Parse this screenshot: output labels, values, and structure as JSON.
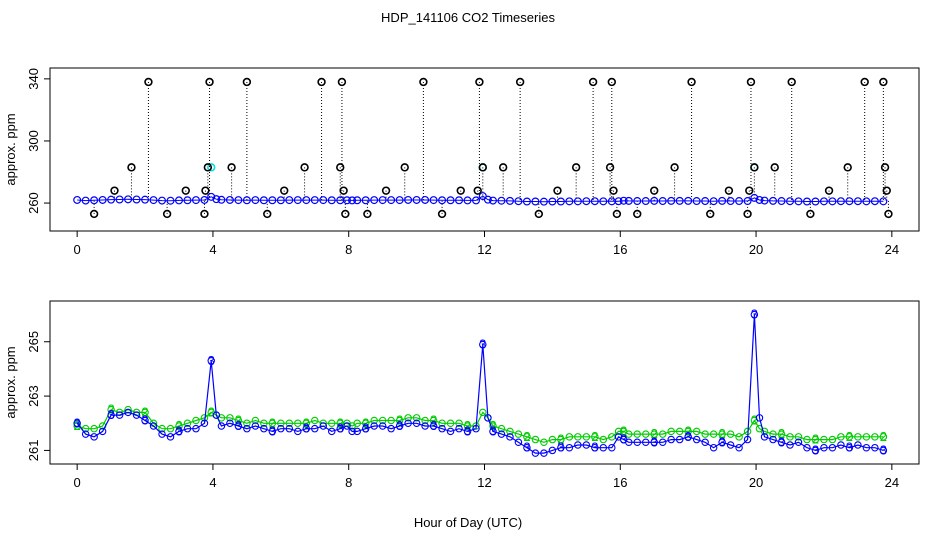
{
  "title": "HDP_141106  CO2 Timeseries",
  "xlabel": "Hour of Day (UTC)",
  "colors": {
    "axis": "#000000",
    "primary": "#0000ff",
    "secondary": "#00cc00",
    "outlier": "#000000",
    "highlight": "#00e0e0"
  },
  "chart_data": [
    {
      "type": "scatter",
      "ylabel": "approx. ppm",
      "xlim": [
        -0.8,
        24.8
      ],
      "ylim": [
        242,
        347
      ],
      "x_ticks": [
        0,
        4,
        8,
        12,
        16,
        20,
        24
      ],
      "y_ticks": [
        260,
        300,
        340
      ],
      "vertical_drop_lines": true,
      "series": [
        {
          "marker": "open-circle",
          "color": "#0000ff",
          "x": [
            0.0,
            0.25,
            0.5,
            0.75,
            1.0,
            1.25,
            1.5,
            1.75,
            2.0,
            2.25,
            2.5,
            2.75,
            3.0,
            3.25,
            3.5,
            3.75,
            3.95,
            4.1,
            4.25,
            4.5,
            4.75,
            5.0,
            5.25,
            5.5,
            5.75,
            6.0,
            6.25,
            6.5,
            6.75,
            7.0,
            7.25,
            7.5,
            7.75,
            7.95,
            8.1,
            8.25,
            8.5,
            8.75,
            9.0,
            9.25,
            9.5,
            9.75,
            10.0,
            10.25,
            10.5,
            10.75,
            11.0,
            11.25,
            11.5,
            11.75,
            11.95,
            12.1,
            12.25,
            12.5,
            12.75,
            13.0,
            13.25,
            13.5,
            13.75,
            14.0,
            14.25,
            14.5,
            14.75,
            15.0,
            15.25,
            15.5,
            15.75,
            15.95,
            16.1,
            16.25,
            16.5,
            16.75,
            17.0,
            17.25,
            17.5,
            17.75,
            18.0,
            18.25,
            18.5,
            18.75,
            19.0,
            19.25,
            19.5,
            19.75,
            19.95,
            20.1,
            20.25,
            20.5,
            20.75,
            21.0,
            21.25,
            21.5,
            21.75,
            22.0,
            22.25,
            22.5,
            22.75,
            23.0,
            23.25,
            23.5,
            23.75
          ],
          "y": [
            262,
            261.6,
            261.8,
            262,
            262.2,
            262.3,
            262.4,
            262.3,
            262.2,
            261.9,
            261.6,
            261.5,
            261.7,
            261.8,
            261.9,
            262,
            264,
            262.5,
            262.1,
            262,
            261.9,
            261.8,
            261.9,
            261.8,
            261.8,
            261.8,
            261.9,
            261.9,
            261.9,
            261.9,
            261.9,
            261.8,
            261.8,
            261.8,
            261.7,
            261.8,
            261.8,
            261.9,
            261.9,
            261.9,
            261.9,
            262,
            262,
            262,
            261.9,
            261.8,
            261.8,
            261.8,
            261.7,
            261.7,
            264.5,
            262.2,
            261.6,
            261.5,
            261.4,
            261.2,
            261,
            261,
            260.9,
            261,
            261,
            261.1,
            261.1,
            261.2,
            261.2,
            261.1,
            261.1,
            261.2,
            261.5,
            261.4,
            261.3,
            261.3,
            261.4,
            261.3,
            261.4,
            261.4,
            261.4,
            261.3,
            261.3,
            261.2,
            261.4,
            261.3,
            261.3,
            261.3,
            263.3,
            262,
            261.6,
            261.4,
            261.3,
            261.2,
            261.1,
            261,
            261,
            261.1,
            261.1,
            261.2,
            261.2,
            261.2,
            261.1,
            261.2,
            261.1
          ]
        },
        {
          "marker": "open-circle",
          "color": "#000000",
          "label": "outliers",
          "x": [
            0.5,
            1.1,
            1.6,
            2.1,
            2.65,
            3.2,
            3.75,
            3.78,
            3.85,
            3.9,
            4.55,
            5.0,
            5.6,
            6.1,
            6.7,
            7.2,
            7.75,
            7.8,
            7.85,
            7.9,
            8.55,
            9.1,
            9.65,
            10.2,
            10.75,
            11.3,
            11.8,
            11.85,
            11.95,
            12.55,
            13.05,
            13.6,
            14.15,
            14.7,
            15.2,
            15.7,
            15.75,
            15.8,
            15.9,
            16.5,
            17.0,
            17.6,
            18.1,
            18.65,
            19.2,
            19.75,
            19.8,
            19.85,
            19.95,
            20.55,
            21.05,
            21.6,
            22.15,
            22.7,
            23.2,
            23.75,
            23.8,
            23.85,
            23.9
          ],
          "y": [
            253,
            268,
            283,
            338,
            253,
            268,
            253,
            268,
            283,
            338,
            283,
            338,
            253,
            268,
            283,
            338,
            283,
            338,
            268,
            253,
            253,
            268,
            283,
            338,
            253,
            268,
            268,
            338,
            283,
            283,
            338,
            253,
            268,
            283,
            338,
            283,
            338,
            268,
            253,
            253,
            268,
            283,
            338,
            253,
            268,
            253,
            268,
            338,
            283,
            283,
            338,
            253,
            268,
            283,
            338,
            338,
            283,
            268,
            253
          ]
        },
        {
          "marker": "open-circle",
          "color": "#00e0e0",
          "label": "highlight",
          "x": [
            3.95,
            11.95,
            19.95
          ],
          "y": [
            283,
            283,
            283
          ]
        }
      ]
    },
    {
      "type": "line",
      "ylabel": "approx. ppm",
      "xlim": [
        -0.8,
        24.8
      ],
      "ylim": [
        260.5,
        266.5
      ],
      "x_ticks": [
        0,
        4,
        8,
        12,
        16,
        20,
        24
      ],
      "y_ticks": [
        261,
        263,
        265
      ],
      "series": [
        {
          "marker": "3",
          "color": "#0000ff",
          "x": [
            0.0,
            0.25,
            0.5,
            0.75,
            1.0,
            1.25,
            1.5,
            1.75,
            2.0,
            2.25,
            2.5,
            2.75,
            3.0,
            3.25,
            3.5,
            3.75,
            3.95,
            4.1,
            4.25,
            4.5,
            4.75,
            5.0,
            5.25,
            5.5,
            5.75,
            6.0,
            6.25,
            6.5,
            6.75,
            7.0,
            7.25,
            7.5,
            7.75,
            7.95,
            8.1,
            8.25,
            8.5,
            8.75,
            9.0,
            9.25,
            9.5,
            9.75,
            10.0,
            10.25,
            10.5,
            10.75,
            11.0,
            11.25,
            11.5,
            11.75,
            11.95,
            12.1,
            12.25,
            12.5,
            12.75,
            13.0,
            13.25,
            13.5,
            13.75,
            14.0,
            14.25,
            14.5,
            14.75,
            15.0,
            15.25,
            15.5,
            15.75,
            15.95,
            16.1,
            16.25,
            16.5,
            16.75,
            17.0,
            17.25,
            17.5,
            17.75,
            18.0,
            18.25,
            18.5,
            18.75,
            19.0,
            19.25,
            19.5,
            19.75,
            19.95,
            20.1,
            20.25,
            20.5,
            20.75,
            21.0,
            21.25,
            21.5,
            21.75,
            22.0,
            22.25,
            22.5,
            22.75,
            23.0,
            23.25,
            23.5,
            23.75
          ],
          "y": [
            262,
            261.6,
            261.5,
            261.7,
            262.3,
            262.3,
            262.4,
            262.3,
            262.1,
            261.9,
            261.6,
            261.5,
            261.7,
            261.8,
            261.8,
            262,
            264.3,
            262.3,
            261.9,
            262,
            261.9,
            261.8,
            261.9,
            261.8,
            261.7,
            261.8,
            261.8,
            261.7,
            261.8,
            261.8,
            261.9,
            261.7,
            261.8,
            261.9,
            261.7,
            261.7,
            261.8,
            261.9,
            261.9,
            261.8,
            261.9,
            262,
            262,
            261.9,
            261.9,
            261.8,
            261.7,
            261.8,
            261.7,
            261.8,
            264.9,
            262.2,
            261.7,
            261.6,
            261.5,
            261.3,
            261.1,
            260.9,
            260.9,
            261,
            261.1,
            261.1,
            261.2,
            261.2,
            261.1,
            261.1,
            261.1,
            261.5,
            261.4,
            261.3,
            261.3,
            261.3,
            261.3,
            261.3,
            261.4,
            261.4,
            261.5,
            261.4,
            261.3,
            261.1,
            261.3,
            261.2,
            261.1,
            261.4,
            266,
            262.2,
            261.5,
            261.4,
            261.3,
            261.2,
            261.3,
            261.1,
            261,
            261.1,
            261.1,
            261.2,
            261.1,
            261.2,
            261.1,
            261.1,
            261
          ]
        },
        {
          "marker": "2",
          "color": "#00cc00",
          "x": [
            0.0,
            0.25,
            0.5,
            0.75,
            1.0,
            1.25,
            1.5,
            1.75,
            2.0,
            2.25,
            2.5,
            2.75,
            3.0,
            3.25,
            3.5,
            3.75,
            3.95,
            4.1,
            4.25,
            4.5,
            4.75,
            5.0,
            5.25,
            5.5,
            5.75,
            6.0,
            6.25,
            6.5,
            6.75,
            7.0,
            7.25,
            7.5,
            7.75,
            7.95,
            8.1,
            8.25,
            8.5,
            8.75,
            9.0,
            9.25,
            9.5,
            9.75,
            10.0,
            10.25,
            10.5,
            10.75,
            11.0,
            11.25,
            11.5,
            11.75,
            11.95,
            12.1,
            12.25,
            12.5,
            12.75,
            13.0,
            13.25,
            13.5,
            13.75,
            14.0,
            14.25,
            14.5,
            14.75,
            15.0,
            15.25,
            15.5,
            15.75,
            15.95,
            16.1,
            16.25,
            16.5,
            16.75,
            17.0,
            17.25,
            17.5,
            17.75,
            18.0,
            18.25,
            18.5,
            18.75,
            19.0,
            19.25,
            19.5,
            19.75,
            19.95,
            20.1,
            20.25,
            20.5,
            20.75,
            21.0,
            21.25,
            21.5,
            21.75,
            22.0,
            22.25,
            22.5,
            22.75,
            23.0,
            23.25,
            23.5,
            23.75
          ],
          "y": [
            261.9,
            261.8,
            261.8,
            261.9,
            262.5,
            262.4,
            262.5,
            262.4,
            262.4,
            262,
            261.8,
            261.8,
            261.9,
            262,
            262.1,
            262.2,
            262.4,
            262.3,
            262.2,
            262.2,
            262.1,
            262,
            262.1,
            262,
            262,
            262,
            262,
            262,
            262,
            262.1,
            262,
            262,
            262,
            262,
            261.9,
            262,
            262,
            262.1,
            262.1,
            262.1,
            262.1,
            262.2,
            262.2,
            262.1,
            262.1,
            262,
            262,
            262,
            261.9,
            261.9,
            262.4,
            262.2,
            261.9,
            261.8,
            261.7,
            261.6,
            261.5,
            261.4,
            261.3,
            261.4,
            261.4,
            261.5,
            261.5,
            261.5,
            261.5,
            261.4,
            261.5,
            261.7,
            261.7,
            261.6,
            261.6,
            261.6,
            261.6,
            261.6,
            261.7,
            261.7,
            261.7,
            261.7,
            261.6,
            261.6,
            261.6,
            261.6,
            261.5,
            261.7,
            262.1,
            261.8,
            261.7,
            261.6,
            261.6,
            261.5,
            261.5,
            261.4,
            261.4,
            261.4,
            261.4,
            261.5,
            261.5,
            261.5,
            261.5,
            261.5,
            261.5
          ]
        }
      ]
    }
  ]
}
